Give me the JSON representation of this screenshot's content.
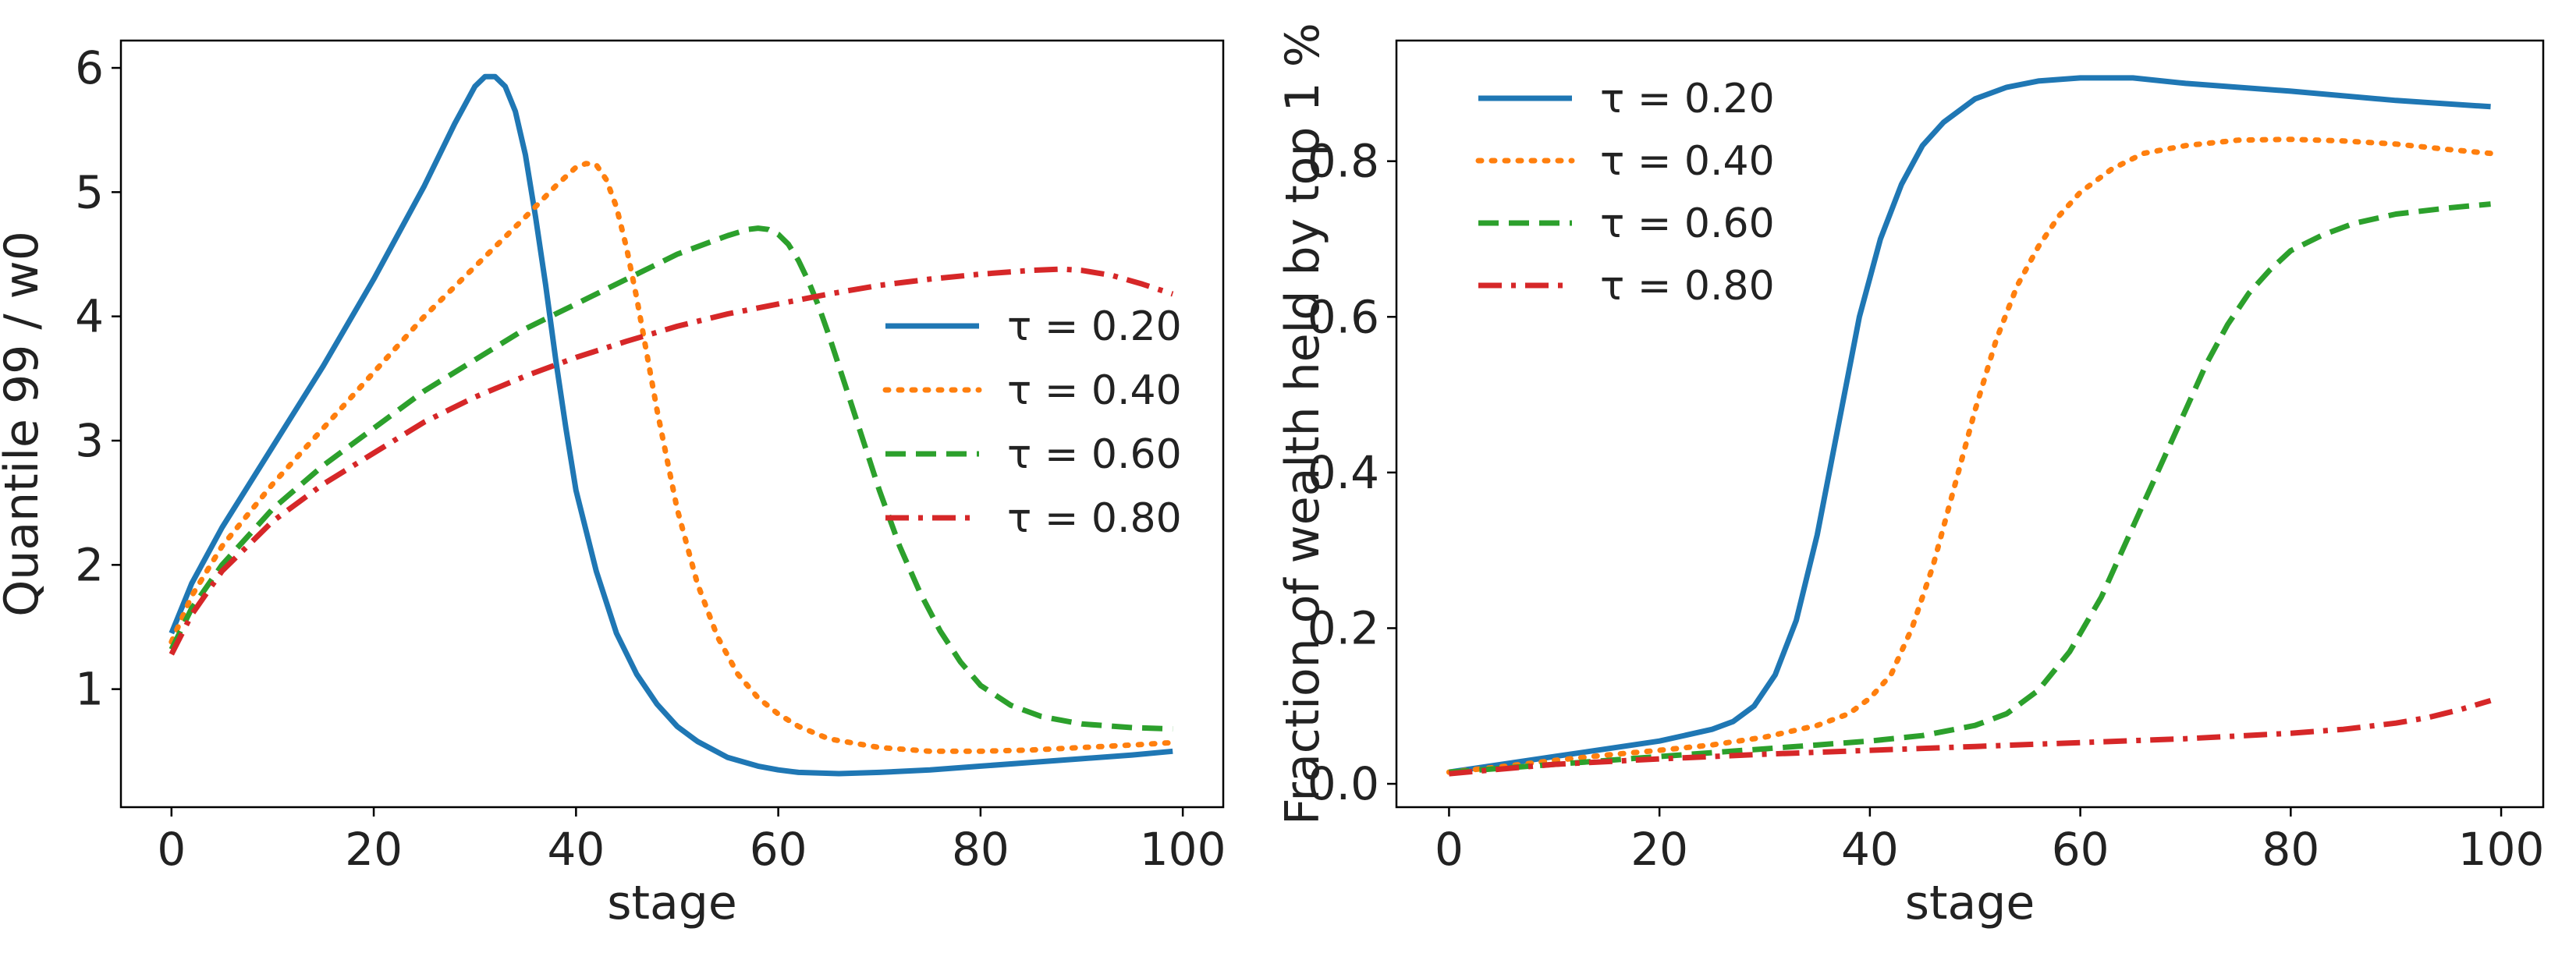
{
  "chart_data": [
    {
      "type": "line",
      "xlabel": "stage",
      "ylabel": "Quantile 99 / w0",
      "xlim": [
        -5,
        104
      ],
      "ylim": [
        0.05,
        6.22
      ],
      "xticks": [
        "0",
        "20",
        "40",
        "60",
        "80",
        "100"
      ],
      "yticks": [
        "1",
        "2",
        "3",
        "4",
        "5",
        "6"
      ],
      "legend_position": "center-right",
      "series": [
        {
          "name": "τ = 0.20",
          "color": "#1f77b4",
          "style": "solid",
          "x": [
            0,
            2,
            5,
            10,
            15,
            20,
            25,
            28,
            30,
            31,
            32,
            33,
            34,
            35,
            36,
            37,
            38,
            39,
            40,
            42,
            44,
            46,
            48,
            50,
            52,
            55,
            58,
            60,
            62,
            66,
            70,
            75,
            80,
            85,
            90,
            95,
            99
          ],
          "y": [
            1.45,
            1.85,
            2.3,
            2.95,
            3.6,
            4.3,
            5.05,
            5.55,
            5.85,
            5.93,
            5.93,
            5.85,
            5.65,
            5.3,
            4.8,
            4.25,
            3.65,
            3.1,
            2.6,
            1.95,
            1.45,
            1.12,
            0.88,
            0.7,
            0.58,
            0.45,
            0.38,
            0.35,
            0.33,
            0.32,
            0.33,
            0.35,
            0.38,
            0.41,
            0.44,
            0.47,
            0.5
          ]
        },
        {
          "name": "τ = 0.40",
          "color": "#ff7f0e",
          "style": "dotted",
          "x": [
            0,
            2,
            5,
            10,
            15,
            20,
            25,
            30,
            35,
            38,
            40,
            41,
            42,
            43,
            44,
            45,
            46,
            47,
            48,
            49,
            50,
            52,
            54,
            56,
            58,
            60,
            62,
            65,
            70,
            75,
            80,
            85,
            90,
            95,
            99
          ],
          "y": [
            1.38,
            1.75,
            2.15,
            2.65,
            3.1,
            3.55,
            4.0,
            4.4,
            4.8,
            5.05,
            5.2,
            5.23,
            5.22,
            5.1,
            4.88,
            4.55,
            4.15,
            3.7,
            3.25,
            2.85,
            2.45,
            1.85,
            1.42,
            1.12,
            0.93,
            0.8,
            0.7,
            0.6,
            0.53,
            0.5,
            0.5,
            0.51,
            0.53,
            0.55,
            0.57
          ]
        },
        {
          "name": "τ = 0.60",
          "color": "#2ca02c",
          "style": "dashed",
          "x": [
            0,
            2,
            5,
            10,
            15,
            20,
            25,
            30,
            35,
            40,
            45,
            50,
            55,
            57,
            58,
            59,
            60,
            61,
            62,
            63,
            64,
            65,
            66,
            67,
            68,
            70,
            72,
            74,
            76,
            78,
            80,
            83,
            86,
            90,
            95,
            99
          ],
          "y": [
            1.32,
            1.65,
            2.0,
            2.45,
            2.8,
            3.1,
            3.4,
            3.65,
            3.9,
            4.1,
            4.3,
            4.5,
            4.65,
            4.7,
            4.71,
            4.7,
            4.66,
            4.58,
            4.45,
            4.28,
            4.08,
            3.85,
            3.6,
            3.35,
            3.1,
            2.6,
            2.15,
            1.78,
            1.47,
            1.22,
            1.03,
            0.87,
            0.78,
            0.72,
            0.69,
            0.68
          ]
        },
        {
          "name": "τ = 0.80",
          "color": "#d62728",
          "style": "dashdot",
          "x": [
            0,
            2,
            5,
            10,
            15,
            20,
            25,
            30,
            35,
            40,
            45,
            50,
            55,
            60,
            65,
            70,
            75,
            80,
            85,
            88,
            90,
            93,
            96,
            99
          ],
          "y": [
            1.28,
            1.6,
            1.95,
            2.35,
            2.65,
            2.9,
            3.15,
            3.35,
            3.52,
            3.67,
            3.8,
            3.92,
            4.02,
            4.1,
            4.18,
            4.25,
            4.3,
            4.34,
            4.37,
            4.38,
            4.37,
            4.33,
            4.26,
            4.18
          ]
        }
      ]
    },
    {
      "type": "line",
      "xlabel": "stage",
      "ylabel": "Fraction of wealth held by top 1 %",
      "xlim": [
        -5,
        104
      ],
      "ylim": [
        -0.03,
        0.955
      ],
      "xticks": [
        "0",
        "20",
        "40",
        "60",
        "80",
        "100"
      ],
      "yticks": [
        "0.0",
        "0.2",
        "0.4",
        "0.6",
        "0.8"
      ],
      "legend_position": "top-left",
      "series": [
        {
          "name": "τ = 0.20",
          "color": "#1f77b4",
          "style": "solid",
          "x": [
            0,
            5,
            10,
            15,
            20,
            25,
            27,
            29,
            31,
            33,
            35,
            37,
            39,
            41,
            43,
            45,
            47,
            50,
            53,
            56,
            60,
            65,
            70,
            80,
            90,
            99
          ],
          "y": [
            0.015,
            0.025,
            0.035,
            0.045,
            0.055,
            0.07,
            0.08,
            0.1,
            0.14,
            0.21,
            0.32,
            0.46,
            0.6,
            0.7,
            0.77,
            0.82,
            0.85,
            0.88,
            0.895,
            0.903,
            0.907,
            0.907,
            0.9,
            0.89,
            0.878,
            0.87
          ]
        },
        {
          "name": "τ = 0.40",
          "color": "#ff7f0e",
          "style": "dotted",
          "x": [
            0,
            5,
            10,
            15,
            20,
            25,
            30,
            35,
            38,
            40,
            42,
            44,
            46,
            48,
            50,
            52,
            54,
            56,
            58,
            60,
            63,
            66,
            70,
            75,
            80,
            85,
            90,
            95,
            99
          ],
          "y": [
            0.015,
            0.022,
            0.03,
            0.037,
            0.043,
            0.05,
            0.06,
            0.075,
            0.09,
            0.11,
            0.14,
            0.2,
            0.28,
            0.38,
            0.48,
            0.57,
            0.64,
            0.69,
            0.73,
            0.76,
            0.79,
            0.81,
            0.82,
            0.827,
            0.828,
            0.826,
            0.822,
            0.815,
            0.81
          ]
        },
        {
          "name": "τ = 0.60",
          "color": "#2ca02c",
          "style": "dashed",
          "x": [
            0,
            5,
            10,
            15,
            20,
            25,
            30,
            35,
            40,
            45,
            50,
            53,
            56,
            59,
            62,
            65,
            68,
            70,
            72,
            74,
            76,
            78,
            80,
            83,
            86,
            90,
            95,
            99
          ],
          "y": [
            0.015,
            0.02,
            0.025,
            0.03,
            0.035,
            0.04,
            0.045,
            0.05,
            0.055,
            0.062,
            0.075,
            0.09,
            0.12,
            0.17,
            0.24,
            0.33,
            0.42,
            0.48,
            0.54,
            0.59,
            0.63,
            0.66,
            0.685,
            0.705,
            0.72,
            0.732,
            0.74,
            0.745
          ]
        },
        {
          "name": "τ = 0.80",
          "color": "#d62728",
          "style": "dashdot",
          "x": [
            0,
            10,
            20,
            30,
            40,
            50,
            60,
            70,
            80,
            85,
            90,
            93,
            96,
            99
          ],
          "y": [
            0.013,
            0.025,
            0.032,
            0.038,
            0.043,
            0.048,
            0.053,
            0.058,
            0.065,
            0.07,
            0.078,
            0.085,
            0.095,
            0.107
          ]
        }
      ]
    }
  ]
}
